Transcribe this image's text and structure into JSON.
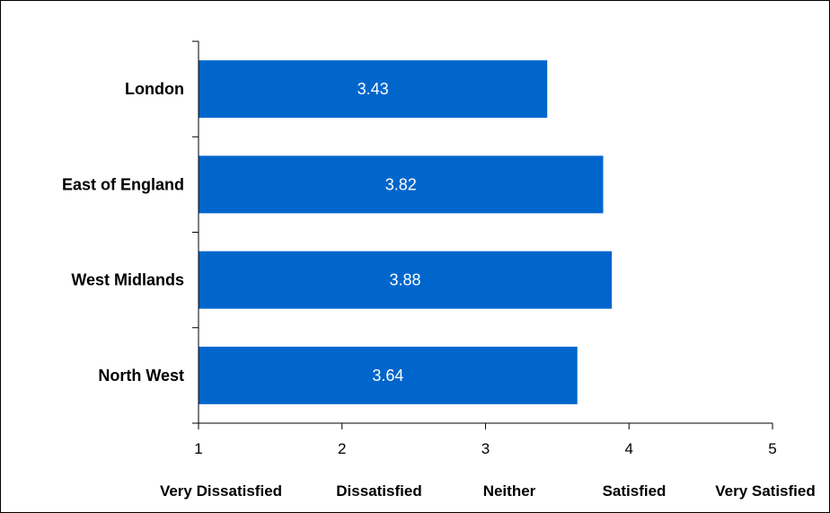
{
  "chart_data": {
    "type": "bar",
    "orientation": "horizontal",
    "title": "",
    "xlabel": "",
    "ylabel": "",
    "categories": [
      "London",
      "East of England",
      "West Midlands",
      "North West"
    ],
    "values": [
      3.43,
      3.82,
      3.88,
      3.64
    ],
    "data_labels": [
      "3.43",
      "3.82",
      "3.88",
      "3.64"
    ],
    "xlim": [
      1,
      5
    ],
    "x_ticks": [
      "1",
      "2",
      "3",
      "4",
      "5"
    ],
    "scale_labels": [
      "Very Dissatisfied",
      "Dissatisfied",
      "Neither",
      "Satisfied",
      "Very Satisfied"
    ],
    "grid": false,
    "legend": "none",
    "bar_color": "#0066CC"
  }
}
